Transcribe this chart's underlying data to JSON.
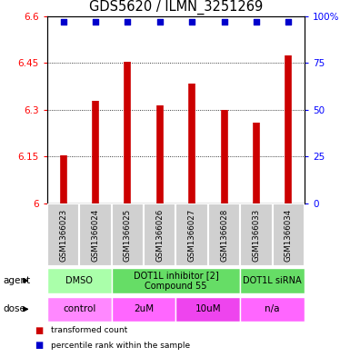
{
  "title": "GDS5620 / ILMN_3251269",
  "samples": [
    "GSM1366023",
    "GSM1366024",
    "GSM1366025",
    "GSM1366026",
    "GSM1366027",
    "GSM1366028",
    "GSM1366033",
    "GSM1366034"
  ],
  "transformed_counts": [
    6.155,
    6.33,
    6.455,
    6.315,
    6.385,
    6.3,
    6.26,
    6.475
  ],
  "percentile_ranks": [
    97,
    97,
    97,
    97,
    97,
    97,
    97,
    97
  ],
  "ylim_left": [
    6.0,
    6.6
  ],
  "ylim_right": [
    0,
    100
  ],
  "yticks_left": [
    6.0,
    6.15,
    6.3,
    6.45,
    6.6
  ],
  "yticks_right": [
    0,
    25,
    50,
    75,
    100
  ],
  "ytick_labels_left": [
    "6",
    "6.15",
    "6.3",
    "6.45",
    "6.6"
  ],
  "ytick_labels_right": [
    "0",
    "25",
    "50",
    "75",
    "100%"
  ],
  "bar_color": "#cc0000",
  "dot_color": "#0000cc",
  "agent_groups": [
    {
      "label": "DMSO",
      "cols": [
        0,
        1
      ],
      "color": "#aaffaa"
    },
    {
      "label": "DOT1L inhibitor [2]\nCompound 55",
      "cols": [
        2,
        3,
        4,
        5
      ],
      "color": "#66dd66"
    },
    {
      "label": "DOT1L siRNA",
      "cols": [
        6,
        7
      ],
      "color": "#66dd66"
    }
  ],
  "dose_groups": [
    {
      "label": "control",
      "cols": [
        0,
        1
      ],
      "color": "#ff88ff"
    },
    {
      "label": "2uM",
      "cols": [
        2,
        3
      ],
      "color": "#ff66ff"
    },
    {
      "label": "10uM",
      "cols": [
        4,
        5
      ],
      "color": "#ee44ee"
    },
    {
      "label": "n/a",
      "cols": [
        6,
        7
      ],
      "color": "#ff66ff"
    }
  ],
  "agent_label": "agent",
  "dose_label": "dose",
  "legend_items": [
    {
      "label": "transformed count",
      "color": "#cc0000"
    },
    {
      "label": "percentile rank within the sample",
      "color": "#0000cc"
    }
  ],
  "sample_bg_color": "#d0d0d0",
  "sample_border_color": "#ffffff"
}
